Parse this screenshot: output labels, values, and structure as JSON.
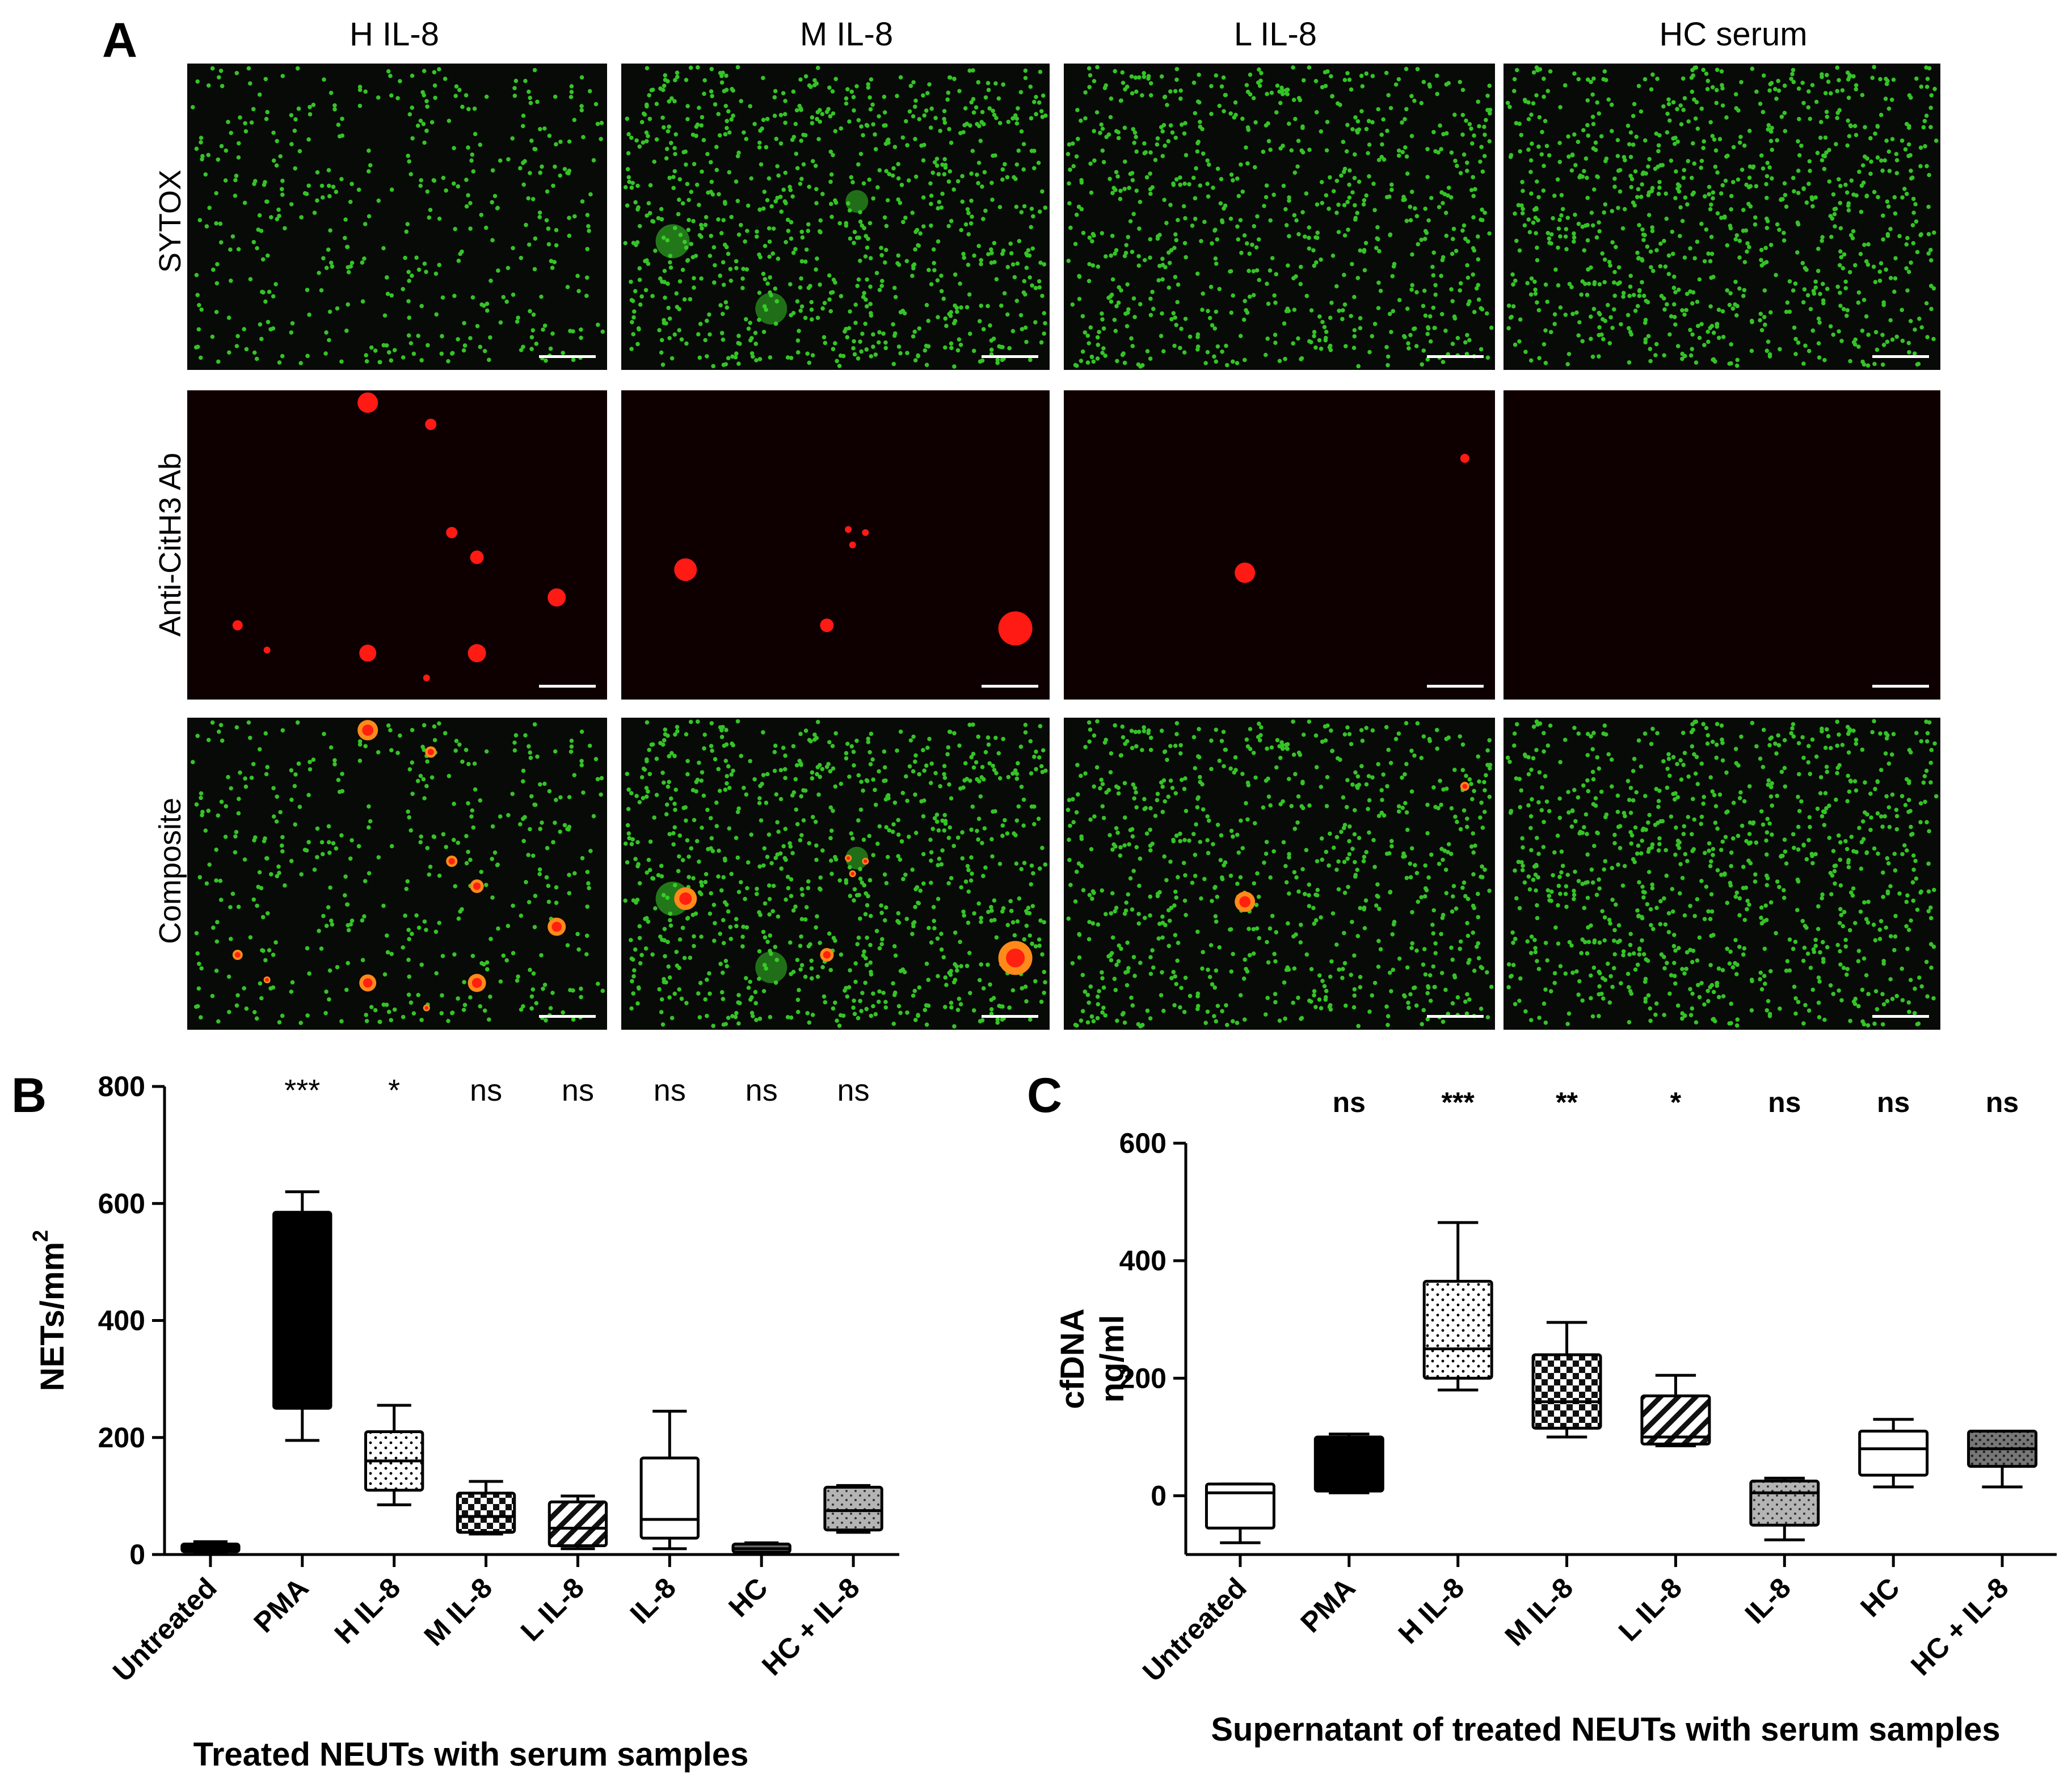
{
  "panel_labels": [
    "A",
    "B",
    "C"
  ],
  "micrographs": {
    "columns": [
      "H IL-8",
      "M IL-8",
      "L IL-8",
      "HC serum"
    ],
    "rows": [
      "SYTOX",
      "Anti-CitH3 Ab",
      "Composite"
    ]
  },
  "colors": {
    "background_cell": "#070a06",
    "cell_green": "#39d42a",
    "net_red": "#ff1a14",
    "net_composite": "#ff8a1a"
  },
  "chart_data": [
    {
      "type": "box",
      "panel": "B",
      "categories": [
        "Untreated",
        "PMA",
        "H IL-8",
        "M IL-8",
        "L IL-8",
        "IL-8",
        "HC",
        "HC + IL-8"
      ],
      "boxes": [
        {
          "min": 2,
          "q1": 5,
          "median": 10,
          "q3": 18,
          "max": 22,
          "fill": "hatch-none-black"
        },
        {
          "min": 195,
          "q1": 250,
          "median": 580,
          "q3": 585,
          "max": 620,
          "fill": "solid-black"
        },
        {
          "min": 85,
          "q1": 110,
          "median": 160,
          "q3": 210,
          "max": 255,
          "fill": "dots"
        },
        {
          "min": 35,
          "q1": 38,
          "median": 65,
          "q3": 105,
          "max": 125,
          "fill": "checker"
        },
        {
          "min": 10,
          "q1": 15,
          "median": 45,
          "q3": 90,
          "max": 100,
          "fill": "diagonal"
        },
        {
          "min": 10,
          "q1": 28,
          "median": 60,
          "q3": 165,
          "max": 245,
          "fill": "horizontal"
        },
        {
          "min": 2,
          "q1": 4,
          "median": 10,
          "q3": 18,
          "max": 20,
          "fill": "solid-gray"
        },
        {
          "min": 38,
          "q1": 42,
          "median": 75,
          "q3": 115,
          "max": 118,
          "fill": "gray-dots"
        }
      ],
      "significance": [
        "***",
        "*",
        "ns",
        "ns",
        "ns",
        "ns",
        "ns"
      ],
      "ylabel": "NETs/mm",
      "ylabel_superscript": "2",
      "xlabel": "Treated NEUTs with serum samples",
      "ylim": [
        0,
        800
      ],
      "yticks": [
        "0",
        "200",
        "400",
        "600",
        "800"
      ]
    },
    {
      "type": "box",
      "panel": "C",
      "categories": [
        "Untreated",
        "PMA",
        "H IL-8",
        "M IL-8",
        "L IL-8",
        "IL-8",
        "HC",
        "HC + IL-8"
      ],
      "boxes": [
        {
          "min": -80,
          "q1": -55,
          "median": 5,
          "q3": 20,
          "max": 20,
          "fill": "white"
        },
        {
          "min": 5,
          "q1": 8,
          "median": 95,
          "q3": 100,
          "max": 105,
          "fill": "solid-black"
        },
        {
          "min": 180,
          "q1": 200,
          "median": 250,
          "q3": 365,
          "max": 465,
          "fill": "dots"
        },
        {
          "min": 100,
          "q1": 115,
          "median": 160,
          "q3": 240,
          "max": 295,
          "fill": "checker"
        },
        {
          "min": 85,
          "q1": 88,
          "median": 100,
          "q3": 170,
          "max": 205,
          "fill": "diagonal"
        },
        {
          "min": -75,
          "q1": -50,
          "median": 5,
          "q3": 25,
          "max": 30,
          "fill": "gray-dots"
        },
        {
          "min": 15,
          "q1": 35,
          "median": 80,
          "q3": 110,
          "max": 130,
          "fill": "horizontal"
        },
        {
          "min": 15,
          "q1": 50,
          "median": 80,
          "q3": 110,
          "max": 110,
          "fill": "dark-dots"
        }
      ],
      "significance": [
        "ns",
        "***",
        "**",
        "*",
        "ns",
        "ns",
        "ns"
      ],
      "ylabel": "cfDNA",
      "ylabel2": "ng/ml",
      "xlabel": "Supernatant of treated NEUTs with serum samples",
      "ylim": [
        -100,
        600
      ],
      "yticks": [
        "0",
        "200",
        "400",
        "600"
      ]
    }
  ]
}
